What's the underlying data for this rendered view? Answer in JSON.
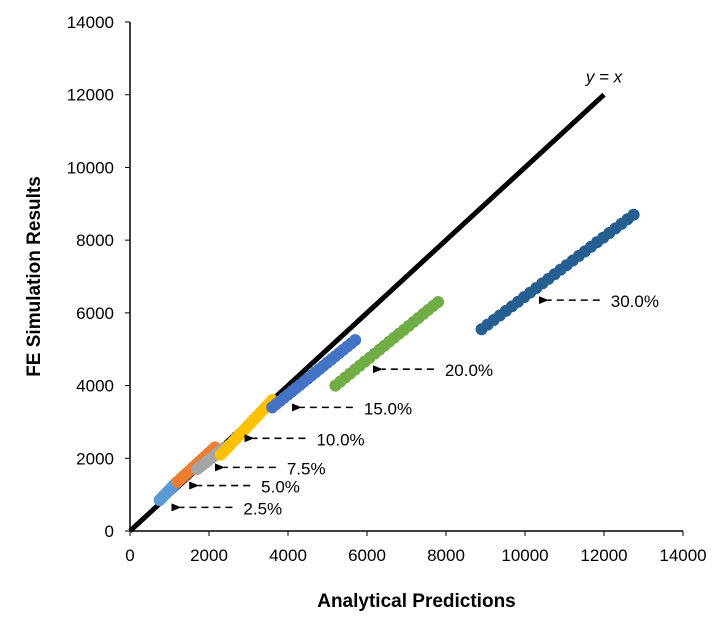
{
  "chart_data": {
    "type": "scatter",
    "title": "",
    "xlabel": "Analytical Predictions",
    "ylabel": "FE Simulation Results",
    "xlim": [
      0,
      14000
    ],
    "ylim": [
      0,
      14000
    ],
    "xticks": [
      "0",
      "2000",
      "4000",
      "6000",
      "8000",
      "10000",
      "12000",
      "14000"
    ],
    "yticks": [
      "0",
      "2000",
      "4000",
      "6000",
      "8000",
      "10000",
      "12000",
      "14000"
    ],
    "grid": false,
    "legend": "none",
    "reference_line": {
      "label": "y = x",
      "x": [
        0,
        12000
      ],
      "y": [
        0,
        12000
      ],
      "color": "#000000"
    },
    "series": [
      {
        "color": "#5B9BD5",
        "x_range": [
          750,
          1150
        ],
        "y_range": [
          850,
          1300
        ],
        "n": 8
      },
      {
        "color": "#ED7D31",
        "x_range": [
          1200,
          2150
        ],
        "y_range": [
          1350,
          2300
        ],
        "n": 13
      },
      {
        "color": "#A5A5A5",
        "x_range": [
          1700,
          2400
        ],
        "y_range": [
          1700,
          2300
        ],
        "n": 11
      },
      {
        "color": "#FFC000",
        "x_range": [
          2300,
          3600
        ],
        "y_range": [
          2100,
          3600
        ],
        "n": 18
      },
      {
        "color": "#4472C4",
        "x_range": [
          3600,
          5700
        ],
        "y_range": [
          3400,
          5250
        ],
        "n": 22
      },
      {
        "color": "#70AD47",
        "x_range": [
          5200,
          7800
        ],
        "y_range": [
          4000,
          6300
        ],
        "n": 22
      },
      {
        "color": "#255E91",
        "x_range": [
          8900,
          12750
        ],
        "y_range": [
          5550,
          8700
        ],
        "n": 26
      }
    ],
    "annotations": [
      {
        "text": "2.5%",
        "x": 1200,
        "y": 650
      },
      {
        "text": "5.0%",
        "x": 1650,
        "y": 1250
      },
      {
        "text": "7.5%",
        "x": 2300,
        "y": 1750
      },
      {
        "text": "10.0%",
        "x": 3050,
        "y": 2550
      },
      {
        "text": "15.0%",
        "x": 4250,
        "y": 3400
      },
      {
        "text": "20.0%",
        "x": 6300,
        "y": 4450
      },
      {
        "text": "30.0%",
        "x": 10500,
        "y": 6350
      }
    ]
  }
}
